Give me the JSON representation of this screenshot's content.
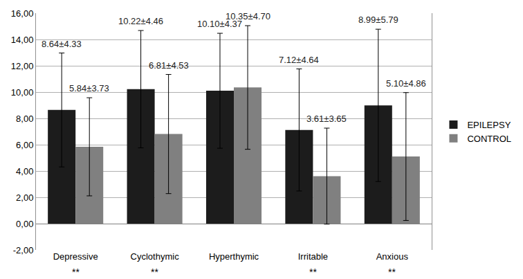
{
  "chart_data": {
    "type": "bar",
    "categories": [
      "Depressive",
      "Cyclothymic",
      "Hyperthymic",
      "Irritable",
      "Anxious"
    ],
    "series": [
      {
        "name": "EPILEPSY",
        "color": "#1c1c1c",
        "values": [
          8.64,
          10.22,
          10.1,
          7.12,
          8.99
        ],
        "errors": [
          4.33,
          4.46,
          4.37,
          4.64,
          5.79
        ],
        "value_labels": [
          "8.64±4.33",
          "10.22±4.46",
          "10.10±4.37",
          "7.12±4.64",
          "8.99±5.79"
        ]
      },
      {
        "name": "CONTROL",
        "color": "#808080",
        "values": [
          5.84,
          6.81,
          10.35,
          3.61,
          5.1
        ],
        "errors": [
          3.73,
          4.53,
          4.7,
          3.65,
          4.86
        ],
        "value_labels": [
          "5.84±3.73",
          "6.81±4.53",
          "10.35±4.70",
          "3.61±3.65",
          "5.10±4.86"
        ]
      }
    ],
    "significance": [
      "**",
      "**",
      null,
      "**",
      "**"
    ],
    "ylim": [
      -2,
      16
    ],
    "yticks": [
      {
        "value": -2,
        "label": "-2,00"
      },
      {
        "value": 0,
        "label": "0,00"
      },
      {
        "value": 2,
        "label": "2,00"
      },
      {
        "value": 4,
        "label": "4,00"
      },
      {
        "value": 6,
        "label": "6,00"
      },
      {
        "value": 8,
        "label": "8,00"
      },
      {
        "value": 10,
        "label": "10,00"
      },
      {
        "value": 12,
        "label": "12,00"
      },
      {
        "value": 14,
        "label": "14,00"
      },
      {
        "value": 16,
        "label": "16,00"
      }
    ],
    "grid": true,
    "legend": "right",
    "data_labels": true
  }
}
